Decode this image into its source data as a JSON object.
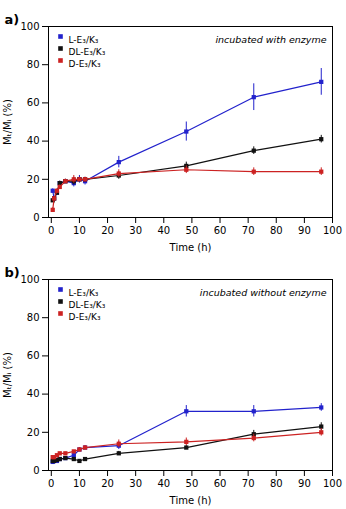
{
  "chart_data": [
    {
      "type": "line",
      "title": "a)",
      "annotations": [
        "incubated with enzyme"
      ],
      "x_label": "Time (h)",
      "y_label": "Mₜ/Mᵢ (%)",
      "x": [
        0.5,
        1,
        2,
        3,
        5,
        8,
        10,
        12,
        24,
        48,
        72,
        96
      ],
      "series": [
        {
          "name": "L-E₃/K₃",
          "color": "#2222cc",
          "marker": "square",
          "values": [
            14,
            10,
            13,
            18,
            19,
            18,
            20,
            19,
            29,
            45,
            63,
            71
          ],
          "yerr": [
            1,
            1,
            1,
            1,
            1,
            2,
            2,
            2,
            3,
            5,
            7,
            7
          ]
        },
        {
          "name": "DL-E₃/K₃",
          "color": "#111111",
          "marker": "square",
          "values": [
            9,
            10,
            13,
            18,
            19,
            19,
            20,
            20,
            22,
            27,
            35,
            41
          ],
          "yerr": [
            1,
            1,
            1,
            1,
            1,
            2,
            1,
            1,
            2,
            2,
            2,
            2
          ]
        },
        {
          "name": "D-E₃/K₃",
          "color": "#cc2222",
          "marker": "square",
          "values": [
            4,
            10,
            14,
            16,
            19,
            20,
            20,
            20,
            23,
            25,
            24,
            24
          ],
          "yerr": [
            1,
            1,
            1,
            1,
            1,
            2,
            1,
            1,
            2,
            2,
            2,
            2
          ]
        }
      ],
      "xlim": [
        -1,
        100
      ],
      "ylim": [
        0,
        100
      ],
      "xticks": [
        0,
        10,
        20,
        30,
        40,
        50,
        60,
        70,
        80,
        90,
        100
      ],
      "yticks": [
        0,
        20,
        40,
        60,
        80,
        100
      ],
      "legend": "upper left",
      "grid": false
    },
    {
      "type": "line",
      "title": "b)",
      "annotations": [
        "incubated without enzyme"
      ],
      "x_label": "Time (h)",
      "y_label": "Mₜ/Mᵢ (%)",
      "x": [
        0.5,
        1,
        2,
        3,
        5,
        8,
        10,
        12,
        24,
        48,
        72,
        96
      ],
      "series": [
        {
          "name": "L-E₃/K₃",
          "color": "#2222cc",
          "marker": "square",
          "values": [
            4.5,
            5,
            5,
            6,
            6.5,
            8,
            11,
            12,
            13,
            31,
            31,
            33
          ],
          "yerr": [
            0.5,
            0.5,
            0.5,
            0.5,
            0.5,
            1,
            1,
            1,
            2,
            3,
            3,
            2
          ]
        },
        {
          "name": "DL-E₃/K₃",
          "color": "#111111",
          "marker": "square",
          "values": [
            5,
            5,
            5.5,
            6,
            6.5,
            6,
            5,
            6,
            9,
            12,
            19,
            23
          ],
          "yerr": [
            0.5,
            0.5,
            0.5,
            0.5,
            0.5,
            0.5,
            0.5,
            0.5,
            1,
            1,
            2,
            2
          ]
        },
        {
          "name": "D-E₃/K₃",
          "color": "#cc2222",
          "marker": "square",
          "values": [
            7,
            7,
            8,
            9,
            9,
            10,
            11,
            12,
            14,
            15,
            17,
            20
          ],
          "yerr": [
            0.5,
            0.5,
            0.5,
            0.5,
            0.5,
            0.5,
            1,
            1,
            2,
            2,
            2,
            2
          ]
        }
      ],
      "xlim": [
        -1,
        100
      ],
      "ylim": [
        0,
        100
      ],
      "xticks": [
        0,
        10,
        20,
        30,
        40,
        50,
        60,
        70,
        80,
        90,
        100
      ],
      "yticks": [
        0,
        20,
        40,
        60,
        80,
        100
      ],
      "legend": "upper left",
      "grid": false
    }
  ]
}
